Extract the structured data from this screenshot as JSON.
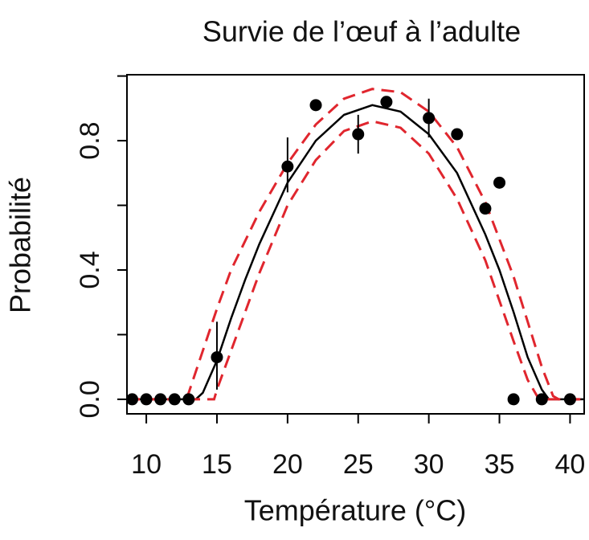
{
  "chart_data": {
    "type": "scatter",
    "title": "Survie de l’œuf à l’adulte",
    "x_label": "Température (°C)",
    "y_label": "Probabilité",
    "xlim": [
      8.63,
      41.0
    ],
    "ylim": [
      -0.045,
      1.004
    ],
    "xticks": [
      10,
      15,
      20,
      25,
      30,
      35,
      40
    ],
    "yticks": [
      {
        "value": 0,
        "label": "0.0"
      },
      {
        "value": 0.2,
        "label": null
      },
      {
        "value": 0.4,
        "label": "0.4"
      },
      {
        "value": 0.6,
        "label": null
      },
      {
        "value": 0.8,
        "label": "0.8"
      },
      {
        "value": 1.0,
        "label": null
      }
    ],
    "points": {
      "color": "#000000",
      "x": [
        9,
        10,
        11,
        12,
        13,
        15,
        20,
        22,
        25,
        27,
        30,
        32,
        34,
        35,
        36,
        38,
        40
      ],
      "values": [
        0,
        0,
        0,
        0,
        0,
        0.13,
        0.72,
        0.91,
        0.82,
        0.92,
        0.87,
        0.82,
        0.59,
        0.67,
        0,
        0,
        0
      ],
      "lower": [
        null,
        null,
        null,
        null,
        null,
        0.03,
        0.64,
        null,
        0.76,
        null,
        0.81,
        null,
        null,
        null,
        null,
        null,
        null
      ],
      "upper": [
        null,
        null,
        null,
        null,
        null,
        0.24,
        0.81,
        null,
        0.88,
        null,
        0.93,
        null,
        null,
        null,
        null,
        null,
        null
      ]
    },
    "curves": [
      {
        "color": "#000000",
        "dash": false,
        "x": [
          8.63,
          13.5,
          14,
          15,
          16,
          17,
          18,
          20,
          22,
          24,
          26,
          28,
          30,
          32,
          34,
          35,
          36,
          37,
          38,
          38.5,
          41.0
        ],
        "values": [
          0,
          0,
          0.02,
          0.12,
          0.25,
          0.37,
          0.48,
          0.67,
          0.8,
          0.88,
          0.91,
          0.89,
          0.82,
          0.7,
          0.51,
          0.4,
          0.27,
          0.13,
          0.03,
          0,
          0
        ]
      },
      {
        "color": "#e0262e",
        "dash": true,
        "x": [
          8.63,
          12.8,
          13,
          14,
          15,
          16,
          18,
          20,
          22,
          24,
          26,
          28,
          30,
          32,
          34,
          36,
          37,
          38,
          38.8,
          39.2,
          41.0
        ],
        "values": [
          0,
          0,
          0.02,
          0.15,
          0.28,
          0.4,
          0.58,
          0.73,
          0.85,
          0.93,
          0.96,
          0.95,
          0.89,
          0.78,
          0.61,
          0.38,
          0.24,
          0.1,
          0.01,
          0,
          0
        ]
      },
      {
        "color": "#e0262e",
        "dash": true,
        "x": [
          8.63,
          14.8,
          15,
          16,
          18,
          20,
          22,
          24,
          26,
          28,
          30,
          32,
          34,
          36,
          37,
          37.8,
          41.0
        ],
        "values": [
          0,
          0,
          0.03,
          0.15,
          0.39,
          0.6,
          0.74,
          0.83,
          0.86,
          0.84,
          0.76,
          0.62,
          0.43,
          0.18,
          0.06,
          0,
          0
        ]
      }
    ]
  }
}
